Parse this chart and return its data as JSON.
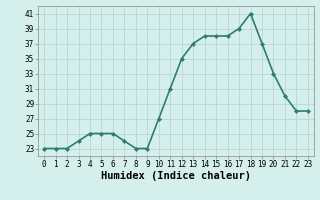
{
  "x": [
    0,
    1,
    2,
    3,
    4,
    5,
    6,
    7,
    8,
    9,
    10,
    11,
    12,
    13,
    14,
    15,
    16,
    17,
    18,
    19,
    20,
    21,
    22,
    23
  ],
  "y": [
    23,
    23,
    23,
    24,
    25,
    25,
    25,
    24,
    23,
    23,
    27,
    31,
    35,
    37,
    38,
    38,
    38,
    39,
    41,
    37,
    33,
    30,
    28,
    28
  ],
  "line_color": "#2e7d6e",
  "marker": "D",
  "marker_size": 2.0,
  "bg_color": "#d4efec",
  "grid_color": "#b8d8d4",
  "xlabel": "Humidex (Indice chaleur)",
  "xlabel_fontsize": 7.5,
  "ylim": [
    22,
    42
  ],
  "yticks": [
    23,
    25,
    27,
    29,
    31,
    33,
    35,
    37,
    39,
    41
  ],
  "xticks": [
    0,
    1,
    2,
    3,
    4,
    5,
    6,
    7,
    8,
    9,
    10,
    11,
    12,
    13,
    14,
    15,
    16,
    17,
    18,
    19,
    20,
    21,
    22,
    23
  ],
  "tick_fontsize": 5.5,
  "line_width": 1.2
}
